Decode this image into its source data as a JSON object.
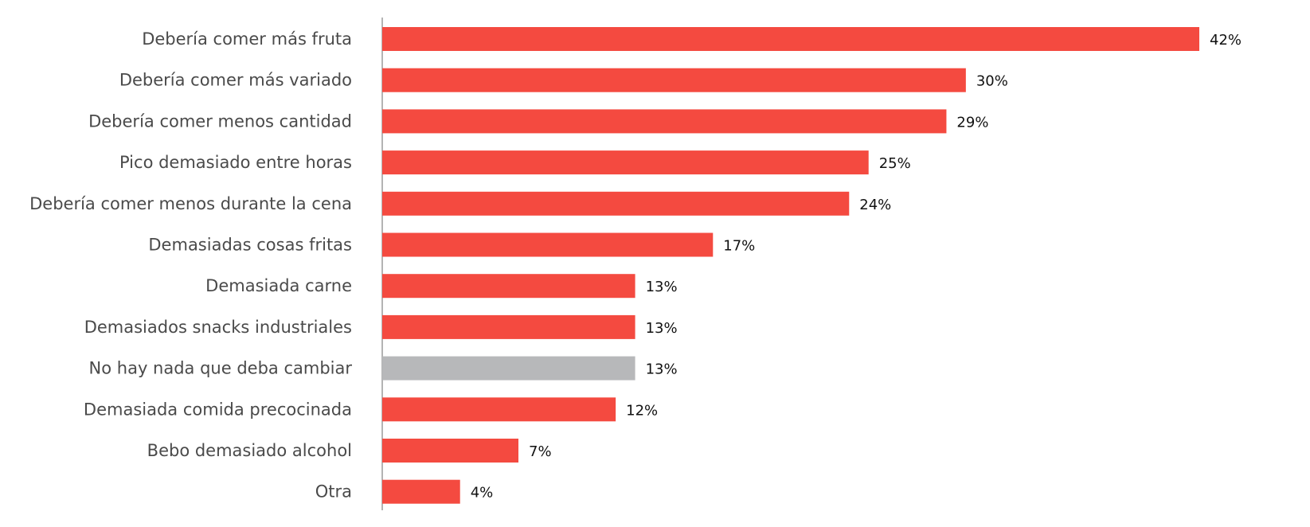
{
  "chart_data": {
    "type": "bar",
    "orientation": "horizontal",
    "categories": [
      "Debería comer más fruta",
      "Debería comer más variado",
      "Debería comer menos cantidad",
      "Pico demasiado entre horas",
      "Debería comer menos durante la cena",
      "Demasiadas cosas fritas",
      "Demasiada carne",
      "Demasiados snacks industriales",
      "No hay nada que deba cambiar",
      "Demasiada comida precocinada",
      "Bebo demasiado alcohol",
      "Otra"
    ],
    "values": [
      42,
      30,
      29,
      25,
      24,
      17,
      13,
      13,
      13,
      12,
      7,
      4
    ],
    "value_labels": [
      "42%",
      "30%",
      "29%",
      "25%",
      "24%",
      "17%",
      "13%",
      "13%",
      "13%",
      "12%",
      "7%",
      "4%"
    ],
    "bar_colors": [
      "#f44a40",
      "#f44a40",
      "#f44a40",
      "#f44a40",
      "#f44a40",
      "#f44a40",
      "#f44a40",
      "#f44a40",
      "#b7b8ba",
      "#f44a40",
      "#f44a40",
      "#f44a40"
    ],
    "xlim": [
      0,
      42
    ],
    "gridlines": false,
    "legend": "none"
  }
}
